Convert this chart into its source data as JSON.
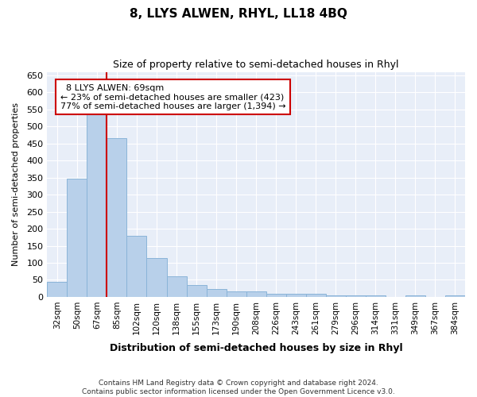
{
  "title": "8, LLYS ALWEN, RHYL, LL18 4BQ",
  "subtitle": "Size of property relative to semi-detached houses in Rhyl",
  "xlabel": "Distribution of semi-detached houses by size in Rhyl",
  "ylabel": "Number of semi-detached properties",
  "categories": [
    "32sqm",
    "50sqm",
    "67sqm",
    "85sqm",
    "102sqm",
    "120sqm",
    "138sqm",
    "155sqm",
    "173sqm",
    "190sqm",
    "208sqm",
    "226sqm",
    "243sqm",
    "261sqm",
    "279sqm",
    "296sqm",
    "314sqm",
    "331sqm",
    "349sqm",
    "367sqm",
    "384sqm"
  ],
  "values": [
    45,
    348,
    535,
    465,
    178,
    115,
    61,
    35,
    22,
    15,
    17,
    10,
    10,
    8,
    5,
    5,
    4,
    0,
    5,
    0,
    5
  ],
  "bar_color": "#b8d0ea",
  "bar_edge_color": "#8ab4d8",
  "property_label": "8 LLYS ALWEN: 69sqm",
  "pct_smaller": 23,
  "pct_larger": 77,
  "count_smaller": 423,
  "count_larger": 1394,
  "marker_bar_index": 2,
  "annotation_box_color": "#ffffff",
  "annotation_box_edge": "#cc0000",
  "line_color": "#cc0000",
  "background_color": "#e8eef8",
  "fig_background": "#ffffff",
  "grid_color": "#ffffff",
  "ylim": [
    0,
    660
  ],
  "yticks": [
    0,
    50,
    100,
    150,
    200,
    250,
    300,
    350,
    400,
    450,
    500,
    550,
    600,
    650
  ],
  "footer_line1": "Contains HM Land Registry data © Crown copyright and database right 2024.",
  "footer_line2": "Contains public sector information licensed under the Open Government Licence v3.0."
}
